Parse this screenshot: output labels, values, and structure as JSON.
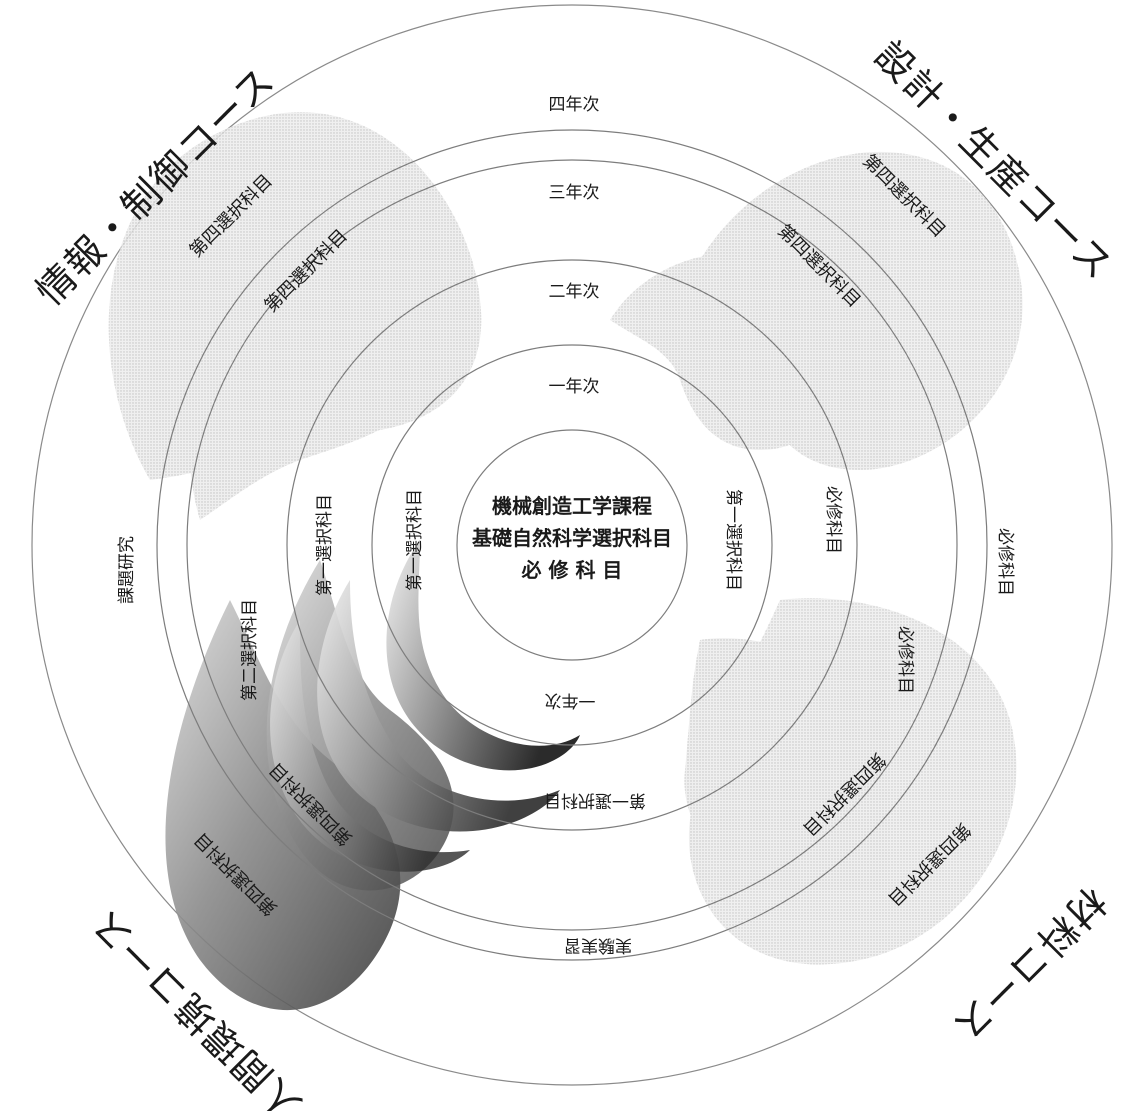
{
  "center": {
    "line1": "機械創造工学課程",
    "line2": "基礎自然科学選択科目",
    "line3": "必 修 科 目"
  },
  "years": {
    "y1": "一年次",
    "y2": "二年次",
    "y3": "三年次",
    "y4": "四年次",
    "y1_bottom": "一年次"
  },
  "courses": {
    "top_left": "情報・制御コース",
    "top_right": "設計・生産コース",
    "bottom_left": "人間環境コース",
    "bottom_right": "材料コース"
  },
  "subjects": {
    "tl_outer": "第四選択科目",
    "tl_inner": "第四選択科目",
    "tr_outer": "第四選択科目",
    "tr_inner": "第四選択科目",
    "br_outer": "第四選択科目",
    "br_inner": "第四選択科目",
    "bl_outer": "第四選択科目",
    "bl_inner": "第四選択科目",
    "first_sel_left_inner": "第一選択科目",
    "first_sel_left_outer": "第一選択科目",
    "first_sel_right": "第一選択科目",
    "first_sel_bottom": "第一選択科目",
    "second_sel_left": "第二選択科目",
    "required_r1": "必修科目",
    "required_r2": "必修科目",
    "required_r3": "必修科目",
    "required_r4": "必修科目",
    "research": "課題研究",
    "practice": "実験実習"
  }
}
